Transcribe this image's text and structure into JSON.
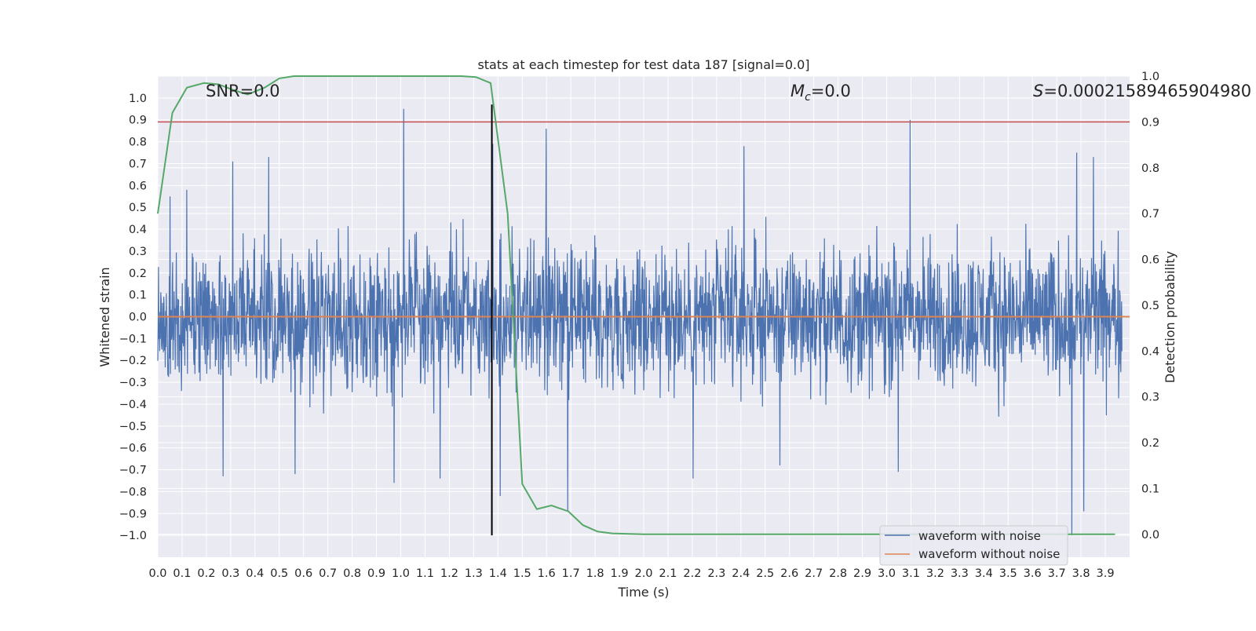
{
  "chart_data": {
    "type": "line",
    "title": "stats at each timestep for test data 187 [signal=0.0]",
    "xlabel": "Time (s)",
    "ylabel": "Whitened strain",
    "y2label": "Detection probability",
    "xlim": [
      0.0,
      4.0
    ],
    "ylim": [
      -1.1,
      1.1
    ],
    "y2lim": [
      -0.05,
      1.0
    ],
    "x_ticks": [
      "0.0",
      "0.1",
      "0.2",
      "0.3",
      "0.4",
      "0.5",
      "0.6",
      "0.7",
      "0.8",
      "0.9",
      "1.0",
      "1.1",
      "1.2",
      "1.3",
      "1.4",
      "1.5",
      "1.6",
      "1.7",
      "1.8",
      "1.9",
      "2.0",
      "2.1",
      "2.2",
      "2.3",
      "2.4",
      "2.5",
      "2.6",
      "2.7",
      "2.8",
      "2.9",
      "3.0",
      "3.1",
      "3.2",
      "3.3",
      "3.4",
      "3.5",
      "3.6",
      "3.7",
      "3.8",
      "3.9"
    ],
    "y_ticks": [
      "1.0",
      "0.9",
      "0.8",
      "0.7",
      "0.6",
      "0.5",
      "0.4",
      "0.3",
      "0.2",
      "0.1",
      "0.0",
      "−0.1",
      "−0.2",
      "−0.3",
      "−0.4",
      "−0.5",
      "−0.6",
      "−0.7",
      "−0.8",
      "−0.9",
      "−1.0"
    ],
    "y2_ticks": [
      "1.0",
      "0.9",
      "0.8",
      "0.7",
      "0.6",
      "0.5",
      "0.4",
      "0.3",
      "0.2",
      "0.1",
      "0.0"
    ],
    "grid": true,
    "background": "#eaeaf2",
    "annotations": {
      "snr": "SNR=0.0",
      "mc_symbol": "M",
      "mc_sub": "c",
      "mc_value": "=0.0",
      "s_symbol": "S",
      "s_value": "=0.00021589465904980"
    },
    "legend": {
      "position": "lower right",
      "entries": [
        "waveform with noise",
        "waveform without noise"
      ]
    },
    "series": [
      {
        "name": "waveform with noise",
        "axis": "left",
        "color": "#4c72b0",
        "noise_band": [
          -0.45,
          0.5
        ],
        "spikes": [
          [
            0.05,
            0.55
          ],
          [
            0.12,
            0.58
          ],
          [
            0.31,
            0.71
          ],
          [
            0.46,
            0.73
          ],
          [
            1.02,
            0.95
          ],
          [
            1.39,
            0.79
          ],
          [
            1.61,
            0.86
          ],
          [
            2.43,
            0.78
          ],
          [
            3.12,
            0.9
          ],
          [
            3.81,
            0.75
          ],
          [
            3.88,
            0.73
          ],
          [
            0.27,
            -0.73
          ],
          [
            0.57,
            -0.72
          ],
          [
            0.98,
            -0.76
          ],
          [
            1.17,
            -0.74
          ],
          [
            1.42,
            -0.82
          ],
          [
            1.7,
            -0.89
          ],
          [
            2.22,
            -0.74
          ],
          [
            2.58,
            -0.68
          ],
          [
            3.07,
            -0.71
          ],
          [
            3.79,
            -1.0
          ],
          [
            3.84,
            -0.89
          ]
        ]
      },
      {
        "name": "waveform without noise",
        "axis": "left",
        "color": "#dd8452",
        "x": [
          0.0,
          4.0
        ],
        "y": [
          0.0,
          0.0
        ]
      },
      {
        "axis": "right",
        "color": "#55a868",
        "x": [
          0.0,
          0.06,
          0.12,
          0.19,
          0.25,
          0.31,
          0.37,
          0.44,
          0.5,
          0.56,
          0.62,
          0.69,
          0.75,
          0.81,
          0.87,
          0.94,
          1.0,
          1.06,
          1.12,
          1.19,
          1.25,
          1.31,
          1.37,
          1.44,
          1.5,
          1.56,
          1.62,
          1.69,
          1.75,
          1.81,
          1.87,
          1.94,
          2.0,
          2.5,
          3.0,
          3.5,
          3.94
        ],
        "y": [
          0.7,
          0.92,
          0.975,
          0.985,
          0.982,
          0.97,
          0.96,
          0.975,
          0.995,
          1.0,
          1.0,
          1.0,
          1.0,
          1.0,
          1.0,
          1.0,
          1.0,
          1.0,
          1.0,
          1.0,
          1.0,
          0.998,
          0.985,
          0.7,
          0.11,
          0.055,
          0.063,
          0.05,
          0.02,
          0.006,
          0.002,
          0.001,
          0.0,
          0.0,
          0.0,
          0.0,
          0.0
        ]
      }
    ],
    "reference_lines": [
      {
        "axis": "right",
        "orientation": "horizontal",
        "value": 0.9,
        "color": "#c44e52"
      },
      {
        "axis": "left",
        "orientation": "vertical",
        "value": 1.375,
        "color": "#000000",
        "range": [
          -1.0,
          0.97
        ]
      }
    ]
  }
}
